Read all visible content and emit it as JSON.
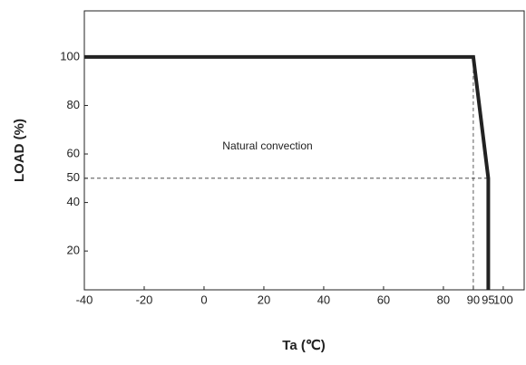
{
  "chart_data": {
    "type": "line",
    "x_label": "Ta (℃)",
    "y_label": "LOAD (%)",
    "annotation": "Natural convection",
    "x": [
      -40,
      90,
      95,
      95
    ],
    "series": [
      {
        "name": null,
        "color": "#222222",
        "values": [
          100,
          100,
          50,
          0
        ]
      }
    ],
    "xlim": [
      -40,
      107
    ],
    "ylim": [
      4,
      119
    ],
    "xticks": [
      -40,
      -20,
      0,
      20,
      40,
      60,
      80,
      90,
      95,
      100
    ],
    "yticks": [
      20,
      40,
      50,
      60,
      80,
      100
    ]
  }
}
